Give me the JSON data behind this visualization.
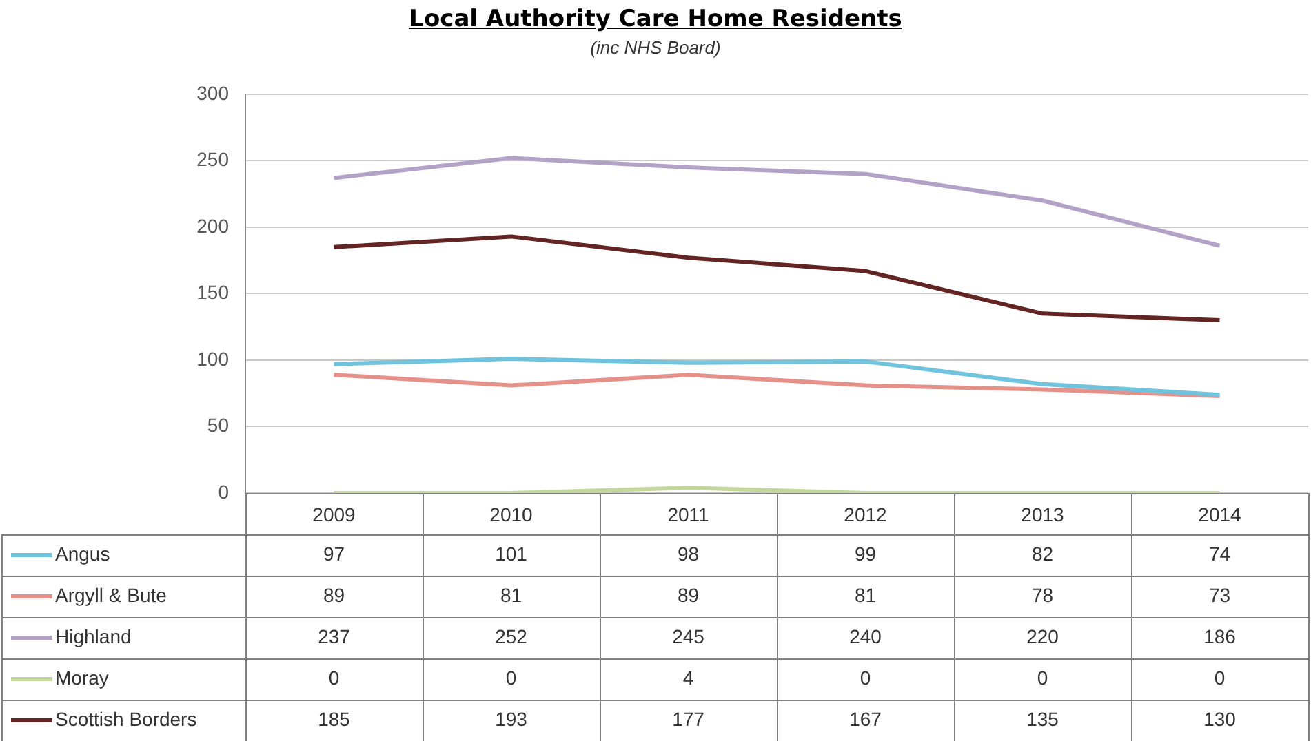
{
  "chart_data": {
    "type": "line",
    "title": "Local Authority Care Home Residents",
    "subtitle": "(inc NHS Board)",
    "categories": [
      "2009",
      "2010",
      "2011",
      "2012",
      "2013",
      "2014"
    ],
    "series": [
      {
        "name": "Angus",
        "color": "#6fc3dc",
        "values": [
          97,
          101,
          98,
          99,
          82,
          74
        ]
      },
      {
        "name": "Argyll & Bute",
        "color": "#e6908a",
        "values": [
          89,
          81,
          89,
          81,
          78,
          73
        ]
      },
      {
        "name": "Highland",
        "color": "#b3a2c7",
        "values": [
          237,
          252,
          245,
          240,
          220,
          186
        ]
      },
      {
        "name": "Moray",
        "color": "#c3d69b",
        "values": [
          0,
          0,
          4,
          0,
          0,
          0
        ]
      },
      {
        "name": "Scottish Borders",
        "color": "#632523",
        "values": [
          185,
          193,
          177,
          167,
          135,
          130
        ]
      }
    ],
    "ylim": [
      0,
      300
    ],
    "yticks": [
      0,
      50,
      100,
      150,
      200,
      250,
      300
    ],
    "grid": "y",
    "legend": "bottom",
    "marker": "none",
    "line_style": "solid",
    "data_labels": true
  }
}
